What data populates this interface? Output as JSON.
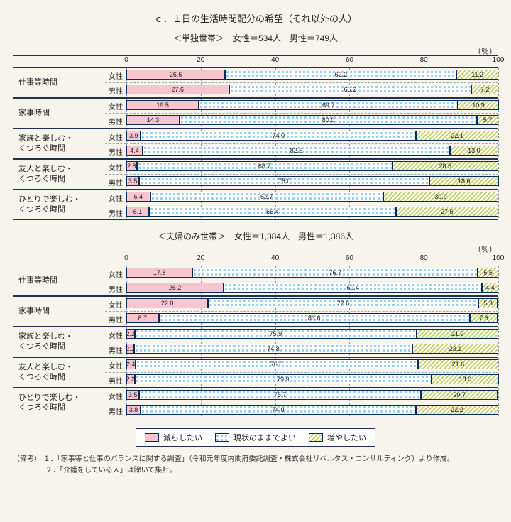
{
  "title": "ｃ．１日の生活時間配分の希望（それ以外の人）",
  "pct_label": "（％）",
  "axis": {
    "min": 0,
    "max": 100,
    "step": 20,
    "ticks": [
      0,
      20,
      40,
      60,
      80,
      100
    ]
  },
  "colors": {
    "decrease": "#f7c5cf",
    "keep": "#9dcff2",
    "increase": "#c7d26a",
    "border": "#203050",
    "grid": "#8a96a8",
    "background": "#f7f4ed"
  },
  "series": [
    {
      "key": "decrease",
      "label": "減らしたい",
      "pattern": "p-pink"
    },
    {
      "key": "keep",
      "label": "現状のままでよい",
      "pattern": "p-blue"
    },
    {
      "key": "increase",
      "label": "増やしたい",
      "pattern": "p-yel"
    }
  ],
  "row_labels": {
    "female": "女性",
    "male": "男性"
  },
  "categories": [
    {
      "key": "work",
      "label": "仕事等時間"
    },
    {
      "key": "house",
      "label": "家事時間"
    },
    {
      "key": "family",
      "label": "家族と楽しむ・\nくつろぐ時間"
    },
    {
      "key": "friend",
      "label": "友人と楽しむ・\nくつろぐ時間"
    },
    {
      "key": "alone",
      "label": "ひとりで楽しむ・\nくつろぐ時間"
    }
  ],
  "panels": [
    {
      "subtitle": "＜単独世帯＞　女性＝534人　男性＝749人",
      "data": {
        "work": {
          "female": [
            26.6,
            62.2,
            11.2
          ],
          "male": [
            27.6,
            65.2,
            7.2
          ]
        },
        "house": {
          "female": [
            19.5,
            69.7,
            10.9
          ],
          "male": [
            14.3,
            80.0,
            5.7
          ]
        },
        "family": {
          "female": [
            3.9,
            74.0,
            22.1
          ],
          "male": [
            4.4,
            82.6,
            13.0
          ]
        },
        "friend": {
          "female": [
            2.8,
            68.7,
            28.5
          ],
          "male": [
            3.5,
            78.0,
            18.6
          ]
        },
        "alone": {
          "female": [
            6.4,
            62.7,
            30.9
          ],
          "male": [
            6.1,
            66.4,
            27.5
          ]
        }
      }
    },
    {
      "subtitle": "＜夫婦のみ世帯＞　女性＝1,384人　男性＝1,386人",
      "data": {
        "work": {
          "female": [
            17.8,
            76.7,
            5.5
          ],
          "male": [
            26.2,
            69.4,
            4.4
          ]
        },
        "house": {
          "female": [
            22.0,
            72.6,
            5.3
          ],
          "male": [
            8.7,
            83.6,
            7.6
          ]
        },
        "family": {
          "female": [
            2.2,
            75.9,
            21.9
          ],
          "male": [
            2.1,
            74.8,
            23.1
          ]
        },
        "friend": {
          "female": [
            2.4,
            76.0,
            21.6
          ],
          "male": [
            2.2,
            79.9,
            18.0
          ]
        },
        "alone": {
          "female": [
            3.5,
            75.7,
            20.7
          ],
          "male": [
            3.8,
            74.0,
            22.2
          ]
        }
      }
    }
  ],
  "notes_label": "（備考）",
  "notes": [
    "１．「家事等と仕事のバランスに関する調査」（令和元年度内閣府委託調査・株式会社リベルタス・コンサルティング）より作成。",
    "２．「介護をしている人」は除いて集計。"
  ],
  "typography": {
    "title_pt": 13,
    "subtitle_pt": 12,
    "axis_pt": 10,
    "value_pt": 9,
    "notes_pt": 10
  }
}
